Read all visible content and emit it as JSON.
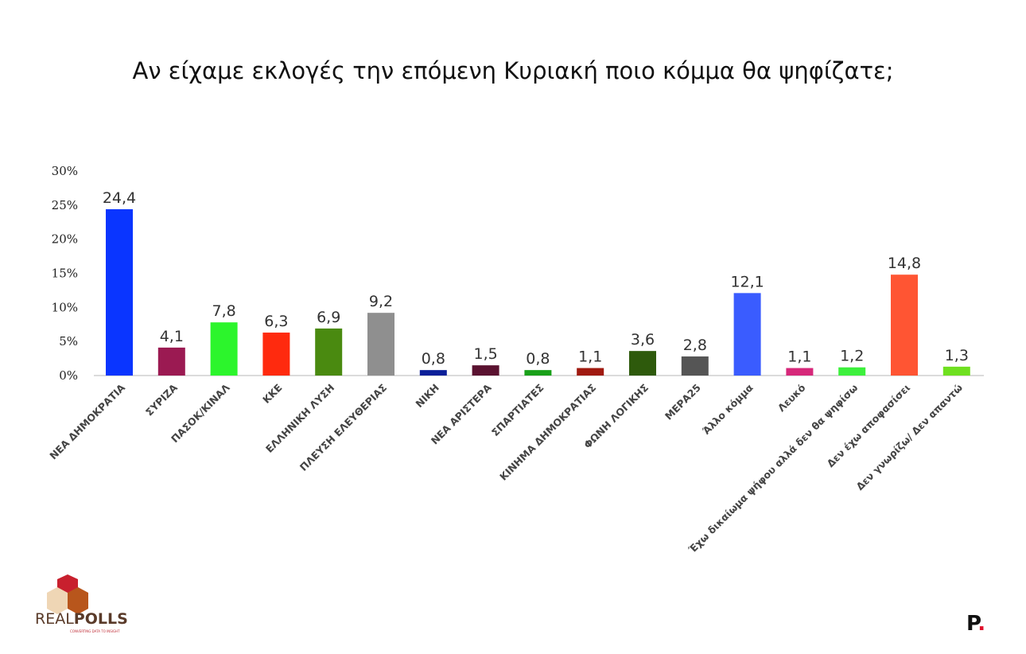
{
  "chart_data": {
    "type": "bar",
    "title": "Αν είχαμε εκλογές την επόμενη Κυριακή ποιο κόμμα θα ψηφίζατε;",
    "xlabel": "",
    "ylabel": "",
    "ylim": [
      0,
      30
    ],
    "yticks": [
      "0%",
      "5%",
      "10%",
      "15%",
      "20%",
      "25%",
      "30%"
    ],
    "grid": false,
    "categories": [
      "ΝΕΑ ΔΗΜΟΚΡΑΤΙΑ",
      "ΣΥΡΙΖΑ",
      "ΠΑΣΟΚ/ΚΙΝΑΛ",
      "ΚΚΕ",
      "ΕΛΛΗΝΙΚΗ ΛΥΣΗ",
      "ΠΛΕΥΣΗ ΕΛΕΥΘΕΡΙΑΣ",
      "ΝΙΚΗ",
      "ΝΕΑ ΑΡΙΣΤΕΡΑ",
      "ΣΠΑΡΤΙΑΤΕΣ",
      "ΚΙΝΗΜΑ ΔΗΜΟΚΡΑΤΙΑΣ",
      "ΦΩΝΗ ΛΟΓΙΚΗΣ",
      "ΜΕΡΑ25",
      "Άλλο κόμμα",
      "Λευκό",
      "Έχω δικαίωμα ψήφου αλλά δεν θα ψηφίσω",
      "Δεν έχω αποφασίσει",
      "Δεν γνωρίζω/ Δεν απαντώ"
    ],
    "values": [
      24.4,
      4.1,
      7.8,
      6.3,
      6.9,
      9.2,
      0.8,
      1.5,
      0.8,
      1.1,
      3.6,
      2.8,
      12.1,
      1.1,
      1.2,
      14.8,
      1.3
    ],
    "value_labels": [
      "24,4",
      "4,1",
      "7,8",
      "6,3",
      "6,9",
      "9,2",
      "0,8",
      "1,5",
      "0,8",
      "1,1",
      "3,6",
      "2,8",
      "12,1",
      "1,1",
      "1,2",
      "14,8",
      "1,3"
    ],
    "colors": [
      "#0a35ff",
      "#9b1a52",
      "#2cf52c",
      "#ff2a0e",
      "#4a8a10",
      "#8f8f8f",
      "#0a1f99",
      "#5a1230",
      "#19a019",
      "#a01a10",
      "#2e5a0c",
      "#555555",
      "#3a5cff",
      "#d6287a",
      "#3df03d",
      "#ff5533",
      "#6fe020"
    ]
  },
  "branding": {
    "left_logo": "REALPOLLS",
    "left_logo_tagline": "CONVERTING DATA TO INSIGHT",
    "right_logo": "P."
  }
}
